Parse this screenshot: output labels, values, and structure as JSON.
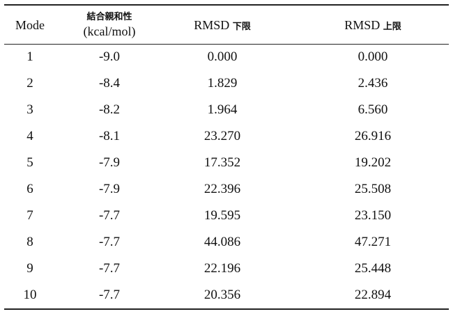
{
  "table": {
    "headers": {
      "mode": "Mode",
      "affinity_line1": "結合親和性",
      "affinity_line2": "(kcal/mol)",
      "rmsd_lower_prefix": "RMSD ",
      "rmsd_lower_cjk": "下限",
      "rmsd_upper_prefix": "RMSD ",
      "rmsd_upper_cjk": "上限"
    },
    "rows": [
      {
        "mode": "1",
        "affinity": "-9.0",
        "rmsd_lb": "0.000",
        "rmsd_ub": "0.000"
      },
      {
        "mode": "2",
        "affinity": "-8.4",
        "rmsd_lb": "1.829",
        "rmsd_ub": "2.436"
      },
      {
        "mode": "3",
        "affinity": "-8.2",
        "rmsd_lb": "1.964",
        "rmsd_ub": "6.560"
      },
      {
        "mode": "4",
        "affinity": "-8.1",
        "rmsd_lb": "23.270",
        "rmsd_ub": "26.916"
      },
      {
        "mode": "5",
        "affinity": "-7.9",
        "rmsd_lb": "17.352",
        "rmsd_ub": "19.202"
      },
      {
        "mode": "6",
        "affinity": "-7.9",
        "rmsd_lb": "22.396",
        "rmsd_ub": "25.508"
      },
      {
        "mode": "7",
        "affinity": "-7.7",
        "rmsd_lb": "19.595",
        "rmsd_ub": "23.150"
      },
      {
        "mode": "8",
        "affinity": "-7.7",
        "rmsd_lb": "44.086",
        "rmsd_ub": "47.271"
      },
      {
        "mode": "9",
        "affinity": "-7.7",
        "rmsd_lb": "22.196",
        "rmsd_ub": "25.448"
      },
      {
        "mode": "10",
        "affinity": "-7.7",
        "rmsd_lb": "20.356",
        "rmsd_ub": "22.894"
      }
    ]
  }
}
